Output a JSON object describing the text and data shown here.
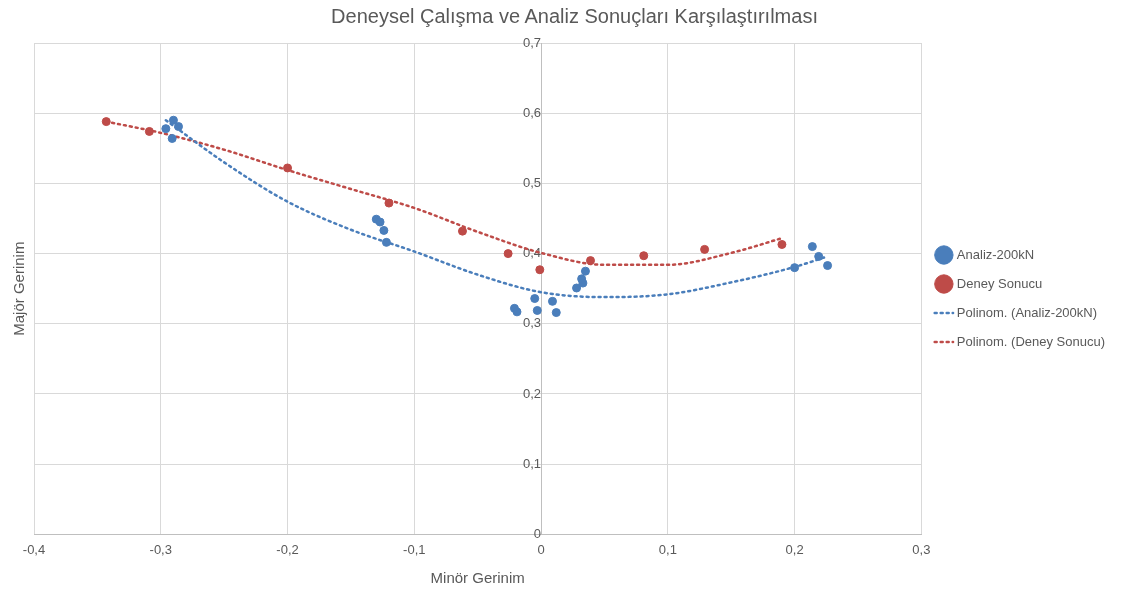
{
  "chart_data": {
    "type": "scatter",
    "title": "Deneysel Çalışma ve Analiz Sonuçları Karşılaştırılması",
    "xlabel": "Minör Gerinim",
    "ylabel": "Majör Gerinim",
    "xlim": [
      -0.4,
      0.3
    ],
    "xticks": [
      {
        "value": -0.4,
        "label": "-0,4"
      },
      {
        "value": -0.3,
        "label": "-0,3"
      },
      {
        "value": -0.2,
        "label": "-0,2"
      },
      {
        "value": -0.1,
        "label": "-0,1"
      },
      {
        "value": 0,
        "label": "0"
      },
      {
        "value": 0.1,
        "label": "0,1"
      },
      {
        "value": 0.2,
        "label": "0,2"
      },
      {
        "value": 0.3,
        "label": "0,3"
      }
    ],
    "ylim": [
      0,
      0.7
    ],
    "yticks": [
      {
        "value": 0,
        "label": "0"
      },
      {
        "value": 0.1,
        "label": "0,1"
      },
      {
        "value": 0.2,
        "label": "0,2"
      },
      {
        "value": 0.3,
        "label": "0,3"
      },
      {
        "value": 0.4,
        "label": "0,4"
      },
      {
        "value": 0.5,
        "label": "0,5"
      },
      {
        "value": 0.6,
        "label": "0,6"
      },
      {
        "value": 0.7,
        "label": "0,7"
      }
    ],
    "grid": true,
    "legend": "right",
    "marker": "circle",
    "series": [
      {
        "name": "Analiz-200kN",
        "type": "scatter",
        "color": "#4a7ebb",
        "x": [
          -0.296,
          -0.29,
          -0.286,
          -0.291,
          -0.13,
          -0.127,
          -0.124,
          -0.122,
          -0.021,
          -0.019,
          -0.005,
          -0.003,
          0.009,
          0.012,
          0.028,
          0.032,
          0.033,
          0.035,
          0.2,
          0.214,
          0.219,
          0.226
        ],
        "values": [
          0.578,
          0.59,
          0.581,
          0.564,
          0.449,
          0.445,
          0.433,
          0.416,
          0.322,
          0.317,
          0.336,
          0.319,
          0.332,
          0.316,
          0.351,
          0.364,
          0.358,
          0.375,
          0.38,
          0.41,
          0.396,
          0.383
        ]
      },
      {
        "name": "Deney Sonucu",
        "type": "scatter",
        "color": "#be4b48",
        "x": [
          -0.343,
          -0.309,
          -0.2,
          -0.12,
          -0.062,
          -0.026,
          -0.001,
          0.039,
          0.081,
          0.129,
          0.19
        ],
        "values": [
          0.588,
          0.574,
          0.522,
          0.472,
          0.432,
          0.4,
          0.377,
          0.39,
          0.397,
          0.406,
          0.413
        ]
      },
      {
        "name": "Polinom. (Analiz-200kN)",
        "type": "line",
        "marker": "none",
        "line_style": "dotted",
        "color": "#4a7ebb",
        "x": [
          -0.296,
          -0.25,
          -0.2,
          -0.15,
          -0.1,
          -0.05,
          0,
          0.05,
          0.1,
          0.15,
          0.2,
          0.226
        ],
        "values": [
          0.59,
          0.53,
          0.474,
          0.434,
          0.403,
          0.37,
          0.345,
          0.338,
          0.342,
          0.359,
          0.381,
          0.396
        ]
      },
      {
        "name": "Polinom. (Deney Sonucu)",
        "type": "line",
        "marker": "none",
        "line_style": "dotted",
        "color": "#be4b48",
        "x": [
          -0.343,
          -0.3,
          -0.25,
          -0.2,
          -0.15,
          -0.1,
          -0.05,
          0,
          0.05,
          0.1,
          0.15,
          0.19
        ],
        "values": [
          0.588,
          0.572,
          0.548,
          0.519,
          0.492,
          0.465,
          0.431,
          0.401,
          0.384,
          0.384,
          0.401,
          0.422
        ]
      }
    ]
  }
}
